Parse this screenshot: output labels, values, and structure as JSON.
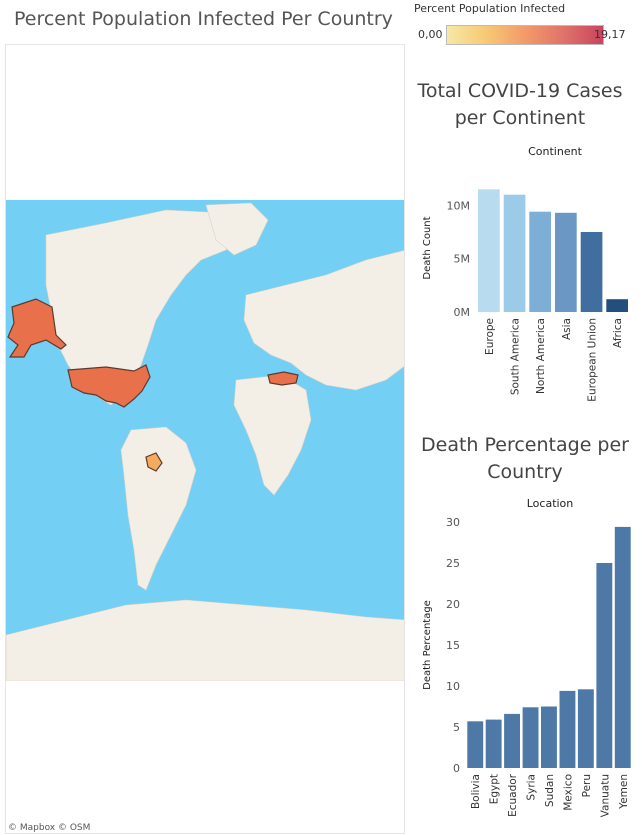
{
  "map": {
    "title": "Percent Population Infected Per Country",
    "legend_title": "Percent Population Infected",
    "legend_min": "0,00",
    "legend_max": "19,17",
    "legend_colors": [
      "#f6e8a6",
      "#f7c974",
      "#f39a6a",
      "#e0726a",
      "#c8445e"
    ],
    "credit": "© Mapbox  © OSM",
    "ocean_color": "#73d0f4",
    "land_color": "#f4efe6",
    "highlighted_countries_color": "#e8704a",
    "low_value_color": "#f5ab5c"
  },
  "chart_data": [
    {
      "type": "bar",
      "title": "Total COVID-19 Cases per Continent",
      "header": "Continent",
      "ylabel": "Death Count",
      "categories": [
        "Europe",
        "South America",
        "North America",
        "Asia",
        "European Union",
        "Africa"
      ],
      "values": [
        11.5,
        11.0,
        9.4,
        9.3,
        7.5,
        1.2
      ],
      "value_unit": "M",
      "yticks": [
        "10M",
        "5M",
        "0M"
      ],
      "ytick_values": [
        10,
        5,
        0
      ],
      "ylim": [
        0,
        12
      ],
      "colors": [
        "#b8dbf0",
        "#9ccae9",
        "#7daed6",
        "#6a97c4",
        "#3f6e9f",
        "#234f7c"
      ]
    },
    {
      "type": "bar",
      "title": "Death Percentage per Country",
      "header": "Location",
      "ylabel": "Death Percentage",
      "categories": [
        "Bolivia",
        "Egypt",
        "Ecuador",
        "Syria",
        "Sudan",
        "Mexico",
        "Peru",
        "Vanuatu",
        "Yemen"
      ],
      "values": [
        5.7,
        5.9,
        6.6,
        7.4,
        7.5,
        9.4,
        9.6,
        25.0,
        29.4
      ],
      "yticks": [
        "30",
        "25",
        "20",
        "15",
        "10",
        "5",
        "0"
      ],
      "ytick_values": [
        30,
        25,
        20,
        15,
        10,
        5,
        0
      ],
      "ylim": [
        0,
        30
      ],
      "color": "#4e79a7"
    }
  ]
}
